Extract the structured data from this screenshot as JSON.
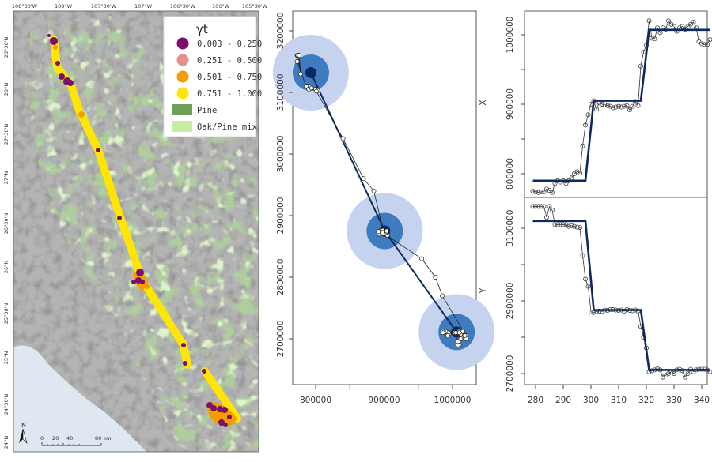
{
  "map": {
    "lon_labels": [
      "108°30'W",
      "108°W",
      "107°30'W",
      "107°W",
      "106°30'W",
      "106°W",
      "105°30'W"
    ],
    "lat_labels": [
      "28°30'N",
      "28°N",
      "27°30'N",
      "27°N",
      "26°30'N",
      "26°N",
      "25°30'N",
      "25°N",
      "24°30'N",
      "24°N"
    ],
    "legend": {
      "title": "γt",
      "classes": [
        {
          "label": "0.003 - 0.250",
          "color": "#7a0f6c"
        },
        {
          "label": "0.251 - 0.500",
          "color": "#e48f8f"
        },
        {
          "label": "0.501 - 0.750",
          "color": "#f59c00"
        },
        {
          "label": "0.751 - 1.000",
          "color": "#ffe500"
        }
      ],
      "land_cover": [
        {
          "label": "Pine",
          "color": "#6f9e57"
        },
        {
          "label": "Oak/Pine mix",
          "color": "#c7eda2"
        }
      ]
    },
    "north_label": "N",
    "scale_labels": [
      "0",
      "20",
      "40",
      "80 km"
    ]
  },
  "chart_data": [
    {
      "type": "scatter",
      "panel": "track",
      "xticks": [
        "800000",
        "900000",
        "1000000"
      ],
      "yticks": [
        "2700000",
        "2800000",
        "2900000",
        "3000000",
        "3100000",
        "3200000"
      ],
      "xlim": [
        770000,
        1040000
      ],
      "ylim": [
        2640000,
        3230000
      ],
      "centers": [
        {
          "x": 793000,
          "y": 3132000
        },
        {
          "x": 901000,
          "y": 2875000
        },
        {
          "x": 1006000,
          "y": 2711000
        }
      ],
      "colors": {
        "outer": "#c5d3ef",
        "middle": "#3f7cbf",
        "inner": "#0b2a64",
        "fit": "#0c2a5e",
        "obs": "#333333"
      }
    },
    {
      "type": "line",
      "panel": "X",
      "label": "X",
      "xticks": [
        "280",
        "290",
        "300",
        "310",
        "320",
        "330",
        "340"
      ],
      "yticks": [
        "800000",
        "900000",
        "1000000"
      ],
      "t": [
        279,
        280,
        281,
        282,
        283,
        284,
        285,
        286,
        287,
        288,
        289,
        290,
        291,
        292,
        293,
        294,
        295,
        296,
        297,
        298,
        299,
        300,
        301,
        302,
        303,
        304,
        305,
        306,
        307,
        308,
        309,
        310,
        311,
        312,
        313,
        314,
        315,
        316,
        317,
        318,
        319,
        320,
        321,
        322,
        323,
        324,
        325,
        326,
        327,
        328,
        329,
        330,
        331,
        332,
        333,
        334,
        335,
        336,
        337,
        338,
        339,
        340,
        341,
        342,
        343
      ],
      "observed": [
        775000,
        774000,
        773000,
        774000,
        774000,
        778000,
        776000,
        773000,
        786000,
        790000,
        788000,
        790000,
        786000,
        790000,
        794000,
        800000,
        803000,
        801000,
        840000,
        870000,
        885000,
        900000,
        905000,
        893000,
        902000,
        900000,
        899000,
        898000,
        897000,
        895000,
        896000,
        897000,
        896000,
        897000,
        898000,
        892000,
        897000,
        904000,
        898000,
        955000,
        975000,
        985000,
        1020000,
        995000,
        994000,
        1010000,
        1003000,
        1010000,
        1008000,
        1020000,
        1015000,
        1012000,
        1005000,
        1010000,
        1012000,
        1008000,
        1012000,
        1015000,
        1018000,
        1010000,
        990000,
        987000,
        986000,
        986000,
        993000
      ],
      "fitted_steps": [
        {
          "t": 279,
          "v": 790000
        },
        {
          "t": 298,
          "v": 790000
        },
        {
          "t": 301,
          "v": 905000
        },
        {
          "t": 318,
          "v": 905000
        },
        {
          "t": 321,
          "v": 1007000
        },
        {
          "t": 343,
          "v": 1007000
        }
      ]
    },
    {
      "type": "line",
      "panel": "Y",
      "label": "Y",
      "xticks": [
        "280",
        "290",
        "300",
        "310",
        "320",
        "330",
        "340"
      ],
      "yticks": [
        "2700000",
        "2900000",
        "3100000"
      ],
      "t": [
        279,
        280,
        281,
        282,
        283,
        284,
        285,
        286,
        287,
        288,
        289,
        290,
        291,
        292,
        293,
        294,
        295,
        296,
        297,
        298,
        299,
        300,
        301,
        302,
        303,
        304,
        305,
        306,
        307,
        308,
        309,
        310,
        311,
        312,
        313,
        314,
        315,
        316,
        317,
        318,
        319,
        320,
        321,
        322,
        323,
        324,
        325,
        326,
        327,
        328,
        329,
        330,
        331,
        332,
        333,
        334,
        335,
        336,
        337,
        338,
        339,
        340,
        341,
        342,
        343
      ],
      "observed": [
        3160000,
        3160000,
        3160000,
        3160000,
        3160000,
        3130000,
        3160000,
        3150000,
        3110000,
        3110000,
        3110000,
        3110000,
        3110000,
        3105000,
        3107000,
        3105000,
        3103000,
        3102000,
        3025000,
        2960000,
        2940000,
        2870000,
        2868000,
        2870000,
        2872000,
        2871000,
        2875000,
        2874000,
        2876000,
        2876000,
        2875000,
        2874000,
        2875000,
        2872000,
        2876000,
        2874000,
        2873000,
        2875000,
        2872000,
        2830000,
        2800000,
        2770000,
        2705000,
        2708000,
        2710000,
        2713000,
        2710000,
        2690000,
        2695000,
        2700000,
        2705000,
        2700000,
        2710000,
        2712000,
        2708000,
        2690000,
        2700000,
        2712000,
        2705000,
        2710000,
        2712000,
        2712000,
        2712000,
        2710000,
        2705000
      ],
      "fitted_steps": [
        {
          "t": 279,
          "v": 3120000
        },
        {
          "t": 298,
          "v": 3120000
        },
        {
          "t": 301,
          "v": 2875000
        },
        {
          "t": 318,
          "v": 2875000
        },
        {
          "t": 321,
          "v": 2710000
        },
        {
          "t": 343,
          "v": 2710000
        }
      ]
    }
  ]
}
